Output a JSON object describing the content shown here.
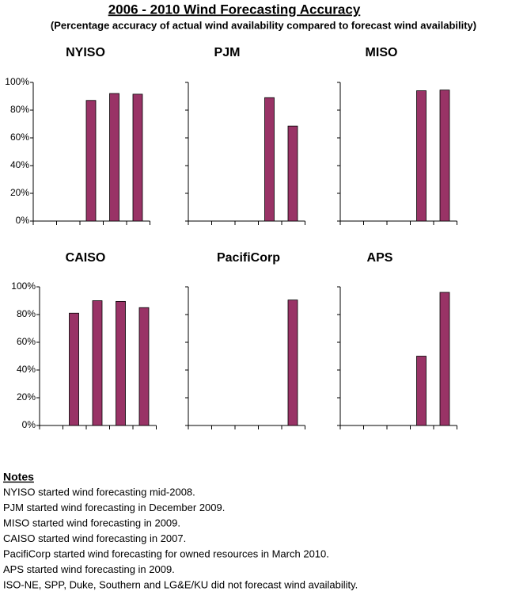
{
  "title": "2006 - 2010 Wind Forecasting Accuracy",
  "subtitle": "(Percentage accuracy of actual wind availability compared to forecast wind availability)",
  "chart_data": [
    {
      "type": "bar",
      "title": "NYISO",
      "categories": [
        null,
        null,
        null,
        null,
        null
      ],
      "values": [
        null,
        null,
        87,
        92,
        91.5
      ],
      "color": "#993366",
      "ylim": [
        0,
        100
      ],
      "yticks": [
        {
          "value": 0,
          "label": "0%"
        },
        {
          "value": 20,
          "label": "20%"
        },
        {
          "value": 40,
          "label": "40%"
        },
        {
          "value": 60,
          "label": "60%"
        },
        {
          "value": 80,
          "label": "80%"
        },
        {
          "value": 100,
          "label": "100%"
        }
      ]
    },
    {
      "type": "bar",
      "title": "PJM",
      "categories": [
        null,
        null,
        null,
        null,
        null
      ],
      "values": [
        null,
        null,
        null,
        89,
        68.5
      ],
      "color": "#993366",
      "ylim": [
        0,
        100
      ],
      "yticks": [
        0,
        20,
        40,
        60,
        80,
        100
      ]
    },
    {
      "type": "bar",
      "title": "MISO",
      "categories": [
        null,
        null,
        null,
        null,
        null
      ],
      "values": [
        null,
        null,
        null,
        94,
        94.5
      ],
      "color": "#993366",
      "ylim": [
        0,
        100
      ],
      "yticks": [
        0,
        20,
        40,
        60,
        80,
        100
      ]
    },
    {
      "type": "bar",
      "title": "CAISO",
      "categories": [
        null,
        null,
        null,
        null,
        null
      ],
      "values": [
        null,
        81,
        90,
        89.5,
        85
      ],
      "color": "#993366",
      "ylim": [
        0,
        100
      ],
      "yticks": [
        {
          "value": 0,
          "label": "0%"
        },
        {
          "value": 20,
          "label": "20%"
        },
        {
          "value": 40,
          "label": "40%"
        },
        {
          "value": 60,
          "label": "60%"
        },
        {
          "value": 80,
          "label": "80%"
        },
        {
          "value": 100,
          "label": "100%"
        }
      ]
    },
    {
      "type": "bar",
      "title": "PacifiCorp",
      "categories": [
        null,
        null,
        null,
        null,
        null
      ],
      "values": [
        null,
        null,
        null,
        null,
        90.5
      ],
      "color": "#993366",
      "ylim": [
        0,
        100
      ],
      "yticks": [
        0,
        20,
        40,
        60,
        80,
        100
      ]
    },
    {
      "type": "bar",
      "title": "APS",
      "categories": [
        null,
        null,
        null,
        null,
        null
      ],
      "values": [
        null,
        null,
        null,
        50,
        96
      ],
      "color": "#993366",
      "ylim": [
        0,
        100
      ],
      "yticks": [
        0,
        20,
        40,
        60,
        80,
        100
      ]
    }
  ],
  "notes": {
    "heading": "Notes",
    "lines": [
      "NYISO started wind forecasting mid-2008.",
      "PJM started wind forecasting in December 2009.",
      "MISO started wind forecasting in 2009.",
      "CAISO started wind forecasting in 2007.",
      "PacifiCorp started wind forecasting for owned resources in March 2010.",
      "APS started wind forecasting in 2009.",
      "ISO-NE, SPP, Duke, Southern and LG&E/KU did not forecast wind availability."
    ]
  }
}
